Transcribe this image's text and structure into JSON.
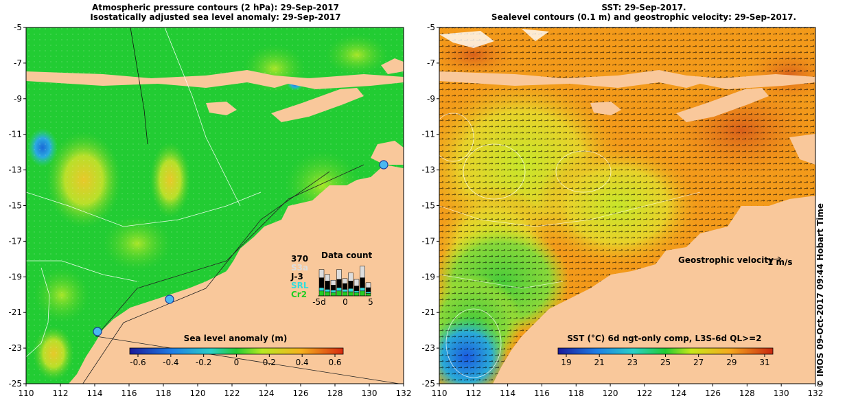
{
  "left_panel": {
    "title_line1": "Atmospheric pressure contours (2 hPa): 29-Sep-2017",
    "title_line2": "Isostatically adjusted sea level anomaly: 29-Sep-2017",
    "colorbar": {
      "title": "Sea level anomaly (m)",
      "ticks": [
        "-0.6",
        "-0.4",
        "-0.2",
        "0",
        "0.2",
        "0.4",
        "0.6"
      ]
    },
    "data_count": {
      "title": "Data count",
      "max_label": "370",
      "missions": [
        {
          "label": "S3a",
          "color": "#dddddd"
        },
        {
          "label": "J-3",
          "color": "#000000"
        },
        {
          "label": "SRL",
          "color": "#33dddd"
        },
        {
          "label": "Cr2",
          "color": "#22cc22"
        }
      ],
      "axis_labels": [
        "-5d",
        "0",
        "5"
      ]
    }
  },
  "right_panel": {
    "title_line1": "SST: 29-Sep-2017.",
    "title_line2": "Sealevel contours (0.1 m) and geostrophic velocity: 29-Sep-2017.",
    "velocity_label": "Geostrophic velocity",
    "velocity_scale": "1 m/s",
    "colorbar": {
      "title": "SST (°C) 6d ngt-only comp, L3S-6d QL>=2",
      "ticks": [
        "19",
        "21",
        "23",
        "25",
        "27",
        "29",
        "31"
      ]
    }
  },
  "axes": {
    "x_ticks": [
      "110",
      "112",
      "114",
      "116",
      "118",
      "120",
      "122",
      "124",
      "126",
      "128",
      "130",
      "132"
    ],
    "y_ticks": [
      "-5",
      "-7",
      "-9",
      "-11",
      "-13",
      "-15",
      "-17",
      "-19",
      "-21",
      "-23",
      "-25"
    ]
  },
  "credit": "© IMOS 09-Oct-2017 09:44 Hobart Time",
  "colors": {
    "land": "#f9c89b",
    "sla_base": "#22cc33",
    "sst_base": "#f39a1a"
  }
}
